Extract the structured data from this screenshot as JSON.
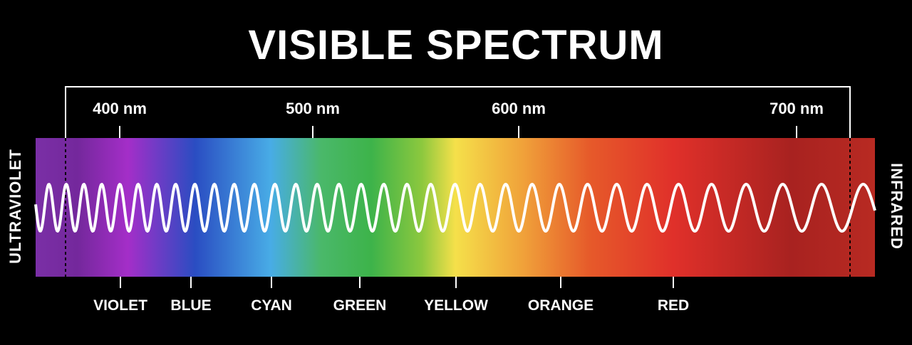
{
  "title": "VISIBLE SPECTRUM",
  "wavelength_ticks": [
    {
      "label": "400 nm",
      "value": 400
    },
    {
      "label": "500 nm",
      "value": 500
    },
    {
      "label": "600 nm",
      "value": 600
    },
    {
      "label": "700 nm",
      "value": 700
    }
  ],
  "color_bands": [
    {
      "label": "VIOLET"
    },
    {
      "label": "BLUE"
    },
    {
      "label": "CYAN"
    },
    {
      "label": "GREEN"
    },
    {
      "label": "YELLOW"
    },
    {
      "label": "ORANGE"
    },
    {
      "label": "RED"
    }
  ],
  "side_labels": {
    "left": "ULTRAVIOLET",
    "right": "INFRARED"
  },
  "colors": {
    "background": "#000000",
    "foreground": "#ffffff",
    "spectrum": [
      "#7a2fa6",
      "#8e26b8",
      "#a42ec8",
      "#2a4dc2",
      "#48ace6",
      "#3db34a",
      "#7dc540",
      "#f5e04a",
      "#f0a23a",
      "#e65a2a",
      "#e0302a",
      "#a82220",
      "#b82a22"
    ]
  }
}
